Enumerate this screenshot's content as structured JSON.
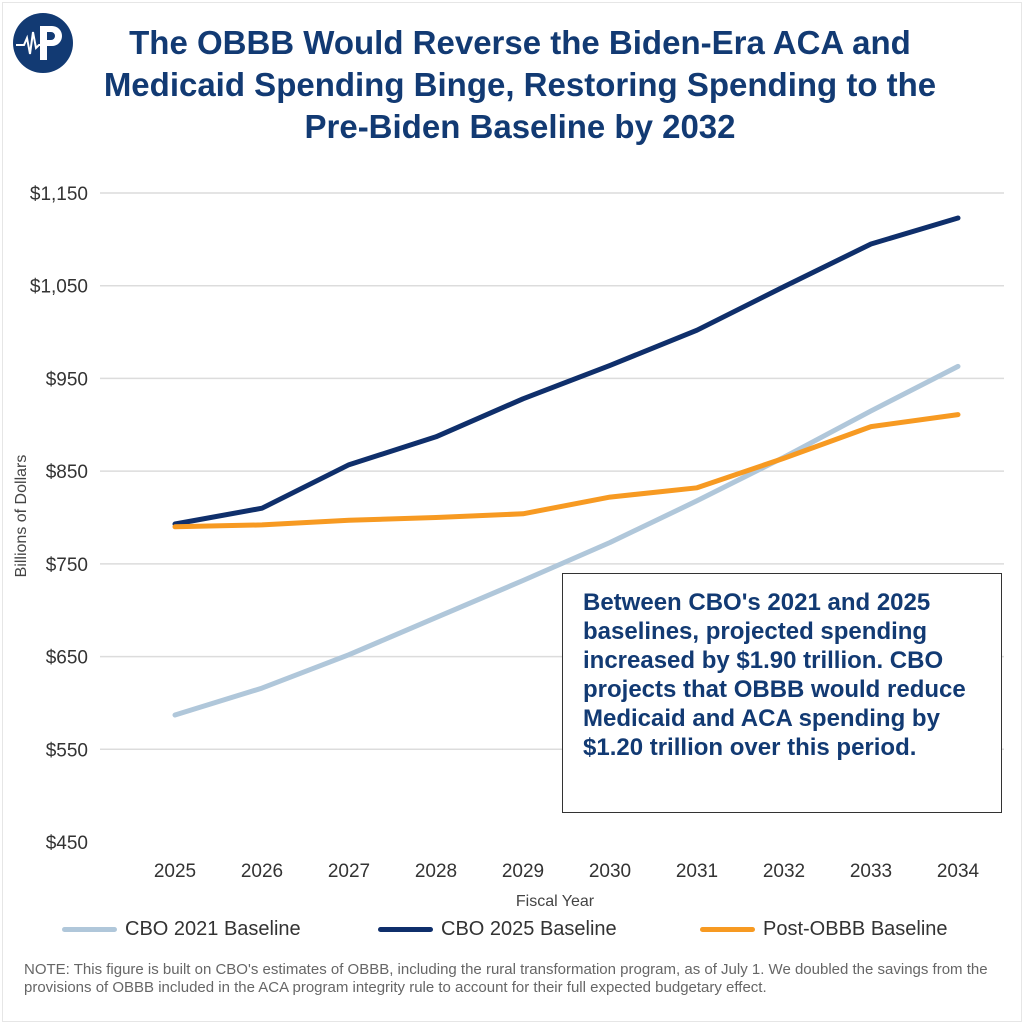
{
  "title": "The OBBB Would Reverse the Biden-Era ACA and Medicaid Spending Binge, Restoring Spending to the Pre-Biden Baseline by 2032",
  "logo": {
    "icon": "heartbeat-p-logo",
    "color": "#123a73"
  },
  "annotation": "Between CBO's 2021 and 2025 baselines, projected spending increased by $1.90 trillion. CBO projects that OBBB would reduce Medicaid and ACA spending by $1.20 trillion over this period.",
  "note": "NOTE: This figure is built on CBO's estimates of OBBB, including the rural transformation program, as of July 1. We doubled the savings from the provisions of OBBB included in the ACA program integrity rule to account for their full expected budgetary effect.",
  "chart_data": {
    "type": "line",
    "title": "The OBBB Would Reverse the Biden-Era ACA and Medicaid Spending Binge, Restoring Spending to the Pre-Biden Baseline by 2032",
    "xlabel": "Fiscal Year",
    "ylabel": "Billions of Dollars",
    "x": [
      2025,
      2026,
      2027,
      2028,
      2029,
      2030,
      2031,
      2032,
      2033,
      2034
    ],
    "x_tick_labels": [
      "2025",
      "2026",
      "2027",
      "2028",
      "2029",
      "2030",
      "2031",
      "2032",
      "2033",
      "2034"
    ],
    "ylim": [
      450,
      1150
    ],
    "y_ticks": [
      450,
      550,
      650,
      750,
      850,
      950,
      1050,
      1150
    ],
    "y_tick_labels": [
      "$450",
      "$550",
      "$650",
      "$750",
      "$850",
      "$950",
      "$1,050",
      "$1,150"
    ],
    "grid": true,
    "legend_position": "bottom",
    "series": [
      {
        "name": "CBO 2021 Baseline",
        "color": "#b0c7da",
        "values": [
          587,
          616,
          652,
          692,
          732,
          773,
          818,
          865,
          915,
          963
        ]
      },
      {
        "name": "CBO 2025 Baseline",
        "color": "#0f2f6b",
        "values": [
          793,
          810,
          857,
          887,
          928,
          964,
          1002,
          1049,
          1095,
          1123
        ]
      },
      {
        "name": "Post-OBBB Baseline",
        "color": "#f79a22",
        "values": [
          790,
          792,
          797,
          800,
          804,
          822,
          832,
          864,
          898,
          911
        ]
      }
    ]
  }
}
